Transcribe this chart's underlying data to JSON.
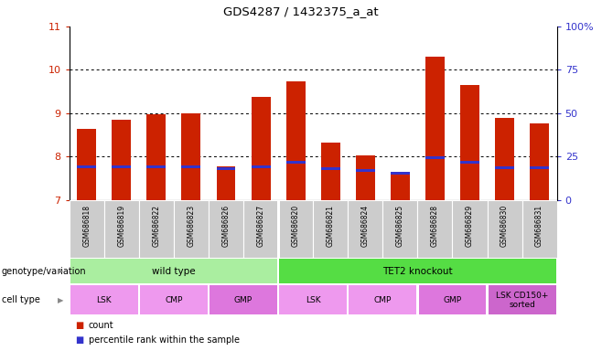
{
  "title": "GDS4287 / 1432375_a_at",
  "samples": [
    "GSM686818",
    "GSM686819",
    "GSM686822",
    "GSM686823",
    "GSM686826",
    "GSM686827",
    "GSM686820",
    "GSM686821",
    "GSM686824",
    "GSM686825",
    "GSM686828",
    "GSM686829",
    "GSM686830",
    "GSM686831"
  ],
  "count_values": [
    8.63,
    8.85,
    8.98,
    9.0,
    7.77,
    9.38,
    9.73,
    8.33,
    8.03,
    7.65,
    10.3,
    9.65,
    8.9,
    8.77
  ],
  "percentile_values": [
    7.77,
    7.77,
    7.77,
    7.77,
    7.72,
    7.77,
    7.88,
    7.72,
    7.68,
    7.62,
    7.98,
    7.88,
    7.75,
    7.75
  ],
  "bar_bottom": 7.0,
  "ylim_left": [
    7.0,
    11.0
  ],
  "ylim_right": [
    0,
    100
  ],
  "yticks_left": [
    7,
    8,
    9,
    10,
    11
  ],
  "yticks_right": [
    0,
    25,
    50,
    75,
    100
  ],
  "yticklabels_right": [
    "0",
    "25",
    "50",
    "75",
    "100%"
  ],
  "red_color": "#cc2200",
  "blue_color": "#3333cc",
  "bar_width": 0.55,
  "genotype_groups": [
    {
      "label": "wild type",
      "start": 0,
      "end": 5,
      "color": "#aaeea0"
    },
    {
      "label": "TET2 knockout",
      "start": 6,
      "end": 13,
      "color": "#55dd44"
    }
  ],
  "cell_type_groups": [
    {
      "label": "LSK",
      "start": 0,
      "end": 1,
      "color": "#ee99ee"
    },
    {
      "label": "CMP",
      "start": 2,
      "end": 3,
      "color": "#ee99ee"
    },
    {
      "label": "GMP",
      "start": 4,
      "end": 5,
      "color": "#dd77dd"
    },
    {
      "label": "LSK",
      "start": 6,
      "end": 7,
      "color": "#ee99ee"
    },
    {
      "label": "CMP",
      "start": 8,
      "end": 9,
      "color": "#ee99ee"
    },
    {
      "label": "GMP",
      "start": 10,
      "end": 11,
      "color": "#dd77dd"
    },
    {
      "label": "LSK CD150+\nsorted",
      "start": 12,
      "end": 13,
      "color": "#cc66cc"
    }
  ],
  "grid_yticks": [
    8,
    9,
    10
  ],
  "legend_count_label": "count",
  "legend_percentile_label": "percentile rank within the sample",
  "xlabel_genotype": "genotype/variation",
  "xlabel_celltype": "cell type",
  "tick_label_color_left": "#cc2200",
  "tick_label_color_right": "#3333cc",
  "sample_label_bg": "#cccccc",
  "wild_type_divider": 6
}
